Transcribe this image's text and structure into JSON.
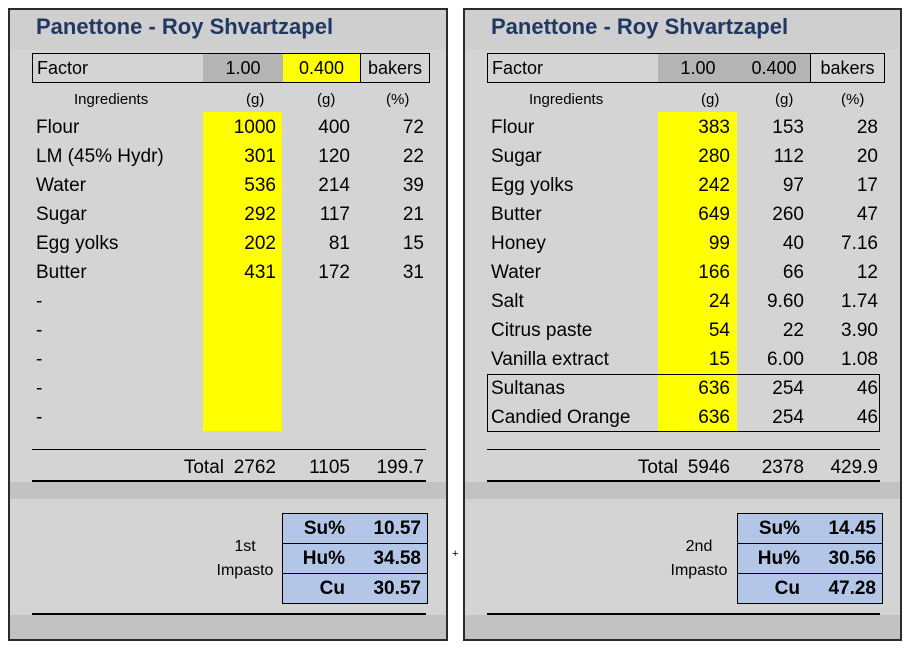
{
  "left": {
    "title": "Panettone - Roy Shvartzapel",
    "factor": {
      "label": "Factor",
      "v1": "1.00",
      "v2": "0.400",
      "unit": "bakers"
    },
    "headers": {
      "ingredients": "Ingredients",
      "g1": "(g)",
      "g2": "(g)",
      "pct": "(%)"
    },
    "rows": [
      {
        "name": "Flour",
        "g1": "1000",
        "g2": "400",
        "pct": "72"
      },
      {
        "name": "LM (45% Hydr)",
        "g1": "301",
        "g2": "120",
        "pct": "22"
      },
      {
        "name": "Water",
        "g1": "536",
        "g2": "214",
        "pct": "39"
      },
      {
        "name": "Sugar",
        "g1": "292",
        "g2": "117",
        "pct": "21"
      },
      {
        "name": "Egg yolks",
        "g1": "202",
        "g2": "81",
        "pct": "15"
      },
      {
        "name": "Butter",
        "g1": "431",
        "g2": "172",
        "pct": "31"
      },
      {
        "name": "-",
        "g1": "",
        "g2": "",
        "pct": ""
      },
      {
        "name": "-",
        "g1": "",
        "g2": "",
        "pct": ""
      },
      {
        "name": "-",
        "g1": "",
        "g2": "",
        "pct": ""
      },
      {
        "name": "-",
        "g1": "",
        "g2": "",
        "pct": ""
      },
      {
        "name": "-",
        "g1": "",
        "g2": "",
        "pct": ""
      }
    ],
    "total": {
      "label": "Total",
      "g1": "2762",
      "g2": "1105",
      "pct": "199.7"
    },
    "impasto": {
      "line1": "1st",
      "line2": "Impasto"
    },
    "stats": [
      {
        "label": "Su%",
        "value": "10.57"
      },
      {
        "label": "Hu%",
        "value": "34.58"
      },
      {
        "label": "Cu",
        "value": "30.57"
      }
    ]
  },
  "right": {
    "title": "Panettone - Roy Shvartzapel",
    "factor": {
      "label": "Factor",
      "v1": "1.00",
      "v2": "0.400",
      "unit": "bakers"
    },
    "headers": {
      "ingredients": "Ingredients",
      "g1": "(g)",
      "g2": "(g)",
      "pct": "(%)"
    },
    "rows": [
      {
        "name": "Flour",
        "g1": "383",
        "g2": "153",
        "pct": "28"
      },
      {
        "name": "Sugar",
        "g1": "280",
        "g2": "112",
        "pct": "20"
      },
      {
        "name": "Egg yolks",
        "g1": "242",
        "g2": "97",
        "pct": "17"
      },
      {
        "name": "Butter",
        "g1": "649",
        "g2": "260",
        "pct": "47"
      },
      {
        "name": "Honey",
        "g1": "99",
        "g2": "40",
        "pct": "7.16"
      },
      {
        "name": "Water",
        "g1": "166",
        "g2": "66",
        "pct": "12"
      },
      {
        "name": "Salt",
        "g1": "24",
        "g2": "9.60",
        "pct": "1.74"
      },
      {
        "name": "Citrus paste",
        "g1": "54",
        "g2": "22",
        "pct": "3.90"
      },
      {
        "name": "Vanilla extract",
        "g1": "15",
        "g2": "6.00",
        "pct": "1.08"
      },
      {
        "name": "Sultanas",
        "g1": "636",
        "g2": "254",
        "pct": "46"
      },
      {
        "name": "Candied Orange",
        "g1": "636",
        "g2": "254",
        "pct": "46"
      }
    ],
    "total": {
      "label": "Total",
      "g1": "5946",
      "g2": "2378",
      "pct": "429.9"
    },
    "impasto": {
      "line1": "2nd",
      "line2": "Impasto"
    },
    "stats": [
      {
        "label": "Su%",
        "value": "14.45"
      },
      {
        "label": "Hu%",
        "value": "30.56"
      },
      {
        "label": "Cu",
        "value": "47.28"
      }
    ]
  },
  "separator_glyph": "+",
  "colors": {
    "title": "#1f3864",
    "input_highlight": "#ffff00",
    "stats_fill": "#b4c6e7",
    "panel_bg": "#d4d4d4",
    "factor_grey": "#b4b4b4"
  }
}
